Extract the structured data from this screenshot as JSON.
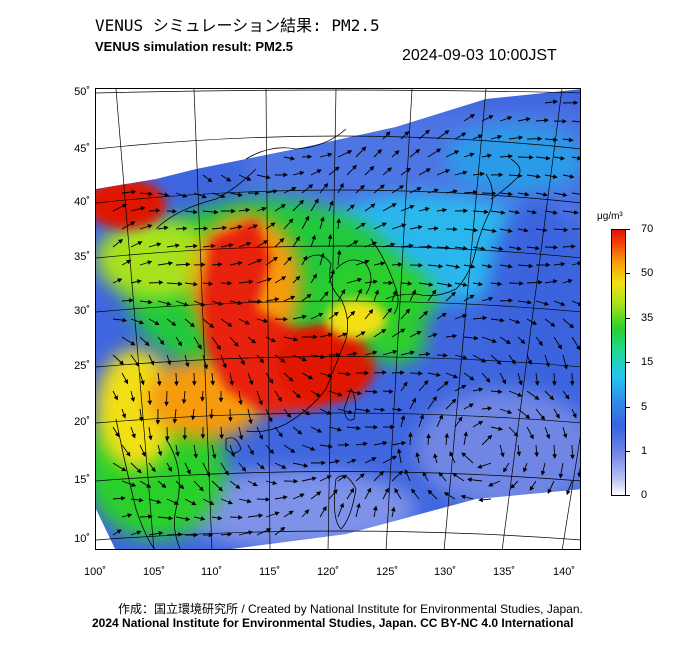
{
  "header": {
    "title_jp": "VENUS シミュレーション結果: PM2.5",
    "title_en": "VENUS simulation result: PM2.5",
    "timestamp": "2024-09-03 10:00JST"
  },
  "map": {
    "lat_labels": [
      "50˚",
      "45˚",
      "40˚",
      "35˚",
      "30˚",
      "25˚",
      "20˚",
      "15˚",
      "10˚"
    ],
    "lon_labels": [
      "100˚",
      "105˚",
      "110˚",
      "115˚",
      "120˚",
      "125˚",
      "130˚",
      "135˚",
      "140˚"
    ],
    "region": "East Asia",
    "wind_vectors": "arrows",
    "colors": {
      "high": "#e01206",
      "mid": "#2ad02c",
      "low": "#3a63df",
      "background": "#ffffff"
    }
  },
  "colorbar": {
    "unit": "μg/m³",
    "ticks": [
      "70",
      "50",
      "35",
      "15",
      "5",
      "1",
      "0"
    ]
  },
  "footer": {
    "credit_line1": "作成：国立環境研究所 / Created by National Institute for Environmental Studies, Japan.",
    "credit_line2": "2024 National Institute for Environmental Studies, Japan. CC BY-NC 4.0 International"
  }
}
